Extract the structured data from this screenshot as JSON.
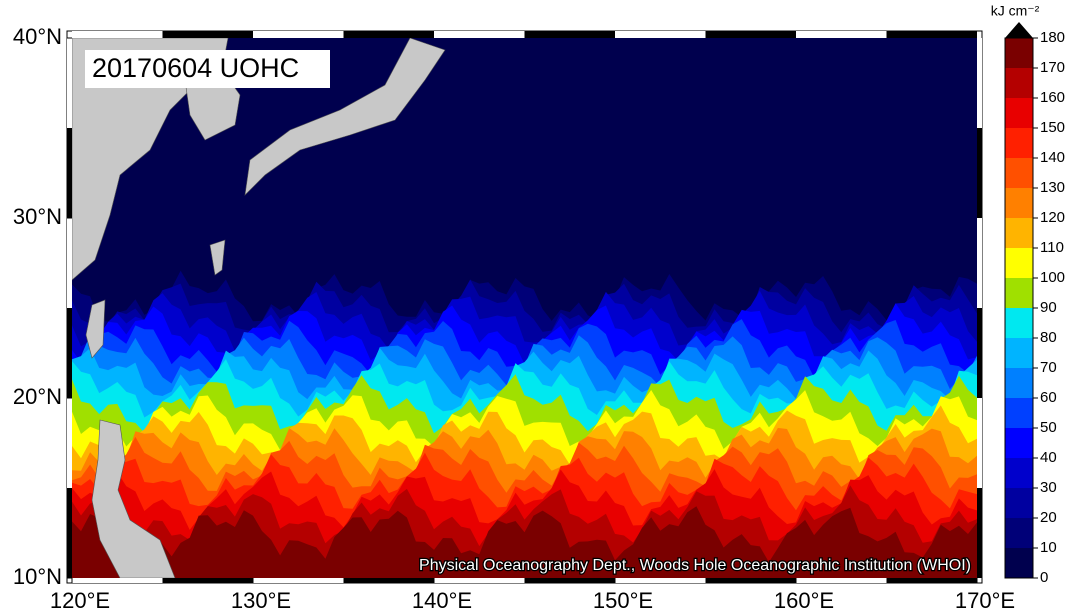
{
  "map": {
    "title": "20170604 UOHC",
    "credit": "Physical Oceanography Dept., Woods Hole Oceanographic Institution (WHOI)",
    "xlim": [
      120,
      170
    ],
    "ylim": [
      10,
      40
    ],
    "xticks": [
      {
        "value": 120,
        "label": "120°E"
      },
      {
        "value": 130,
        "label": "130°E"
      },
      {
        "value": 140,
        "label": "140°E"
      },
      {
        "value": 150,
        "label": "150°E"
      },
      {
        "value": 160,
        "label": "160°E"
      },
      {
        "value": 170,
        "label": "170°E"
      }
    ],
    "yticks": [
      {
        "value": 10,
        "label": "10°N"
      },
      {
        "value": 20,
        "label": "20°N"
      },
      {
        "value": 30,
        "label": "30°N"
      },
      {
        "value": 40,
        "label": "40°N"
      }
    ],
    "colorbar": {
      "unit": "kJ cm⁻²",
      "range": [
        0,
        180
      ],
      "ticks": [
        0,
        10,
        20,
        30,
        40,
        50,
        60,
        70,
        80,
        90,
        100,
        110,
        120,
        130,
        140,
        150,
        160,
        170,
        180
      ],
      "colors": [
        "#00004e",
        "#000078",
        "#0000a0",
        "#0000cc",
        "#0000ff",
        "#0040ff",
        "#0080ff",
        "#00b4ff",
        "#00e8f0",
        "#a0e000",
        "#ffff00",
        "#ffb400",
        "#ff8000",
        "#ff5000",
        "#ff2000",
        "#e80000",
        "#b40000",
        "#7a0000"
      ],
      "over_color": "#000000"
    }
  }
}
